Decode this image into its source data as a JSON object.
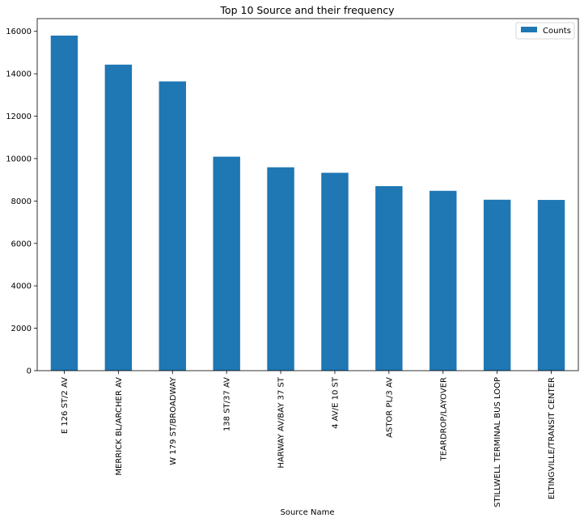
{
  "chart_data": {
    "type": "bar",
    "title": "Top 10 Source and their frequency",
    "xlabel": "Source Name",
    "ylabel": "",
    "categories": [
      "E 126 ST/2 AV",
      "MERRICK BL/ARCHER AV",
      "W 179 ST/BROADWAY",
      "138 ST/37 AV",
      "HARWAY AV/BAY 37 ST",
      "4 AV/E 10 ST",
      "ASTOR PL/3 AV",
      "TEARDROP/LAYOVER",
      "STILLWELL TERMINAL BUS LOOP",
      "ELTINGVILLE/TRANSIT CENTER"
    ],
    "series": [
      {
        "name": "Counts",
        "values": [
          15800,
          14430,
          13640,
          10090,
          9590,
          9330,
          8700,
          8480,
          8060,
          8050
        ]
      }
    ],
    "ylim": [
      0,
      16600
    ],
    "yticks": [
      0,
      2000,
      4000,
      6000,
      8000,
      10000,
      12000,
      14000,
      16000
    ],
    "grid": false,
    "legend_position": "top-right",
    "bar_color": "#1f77b4"
  }
}
